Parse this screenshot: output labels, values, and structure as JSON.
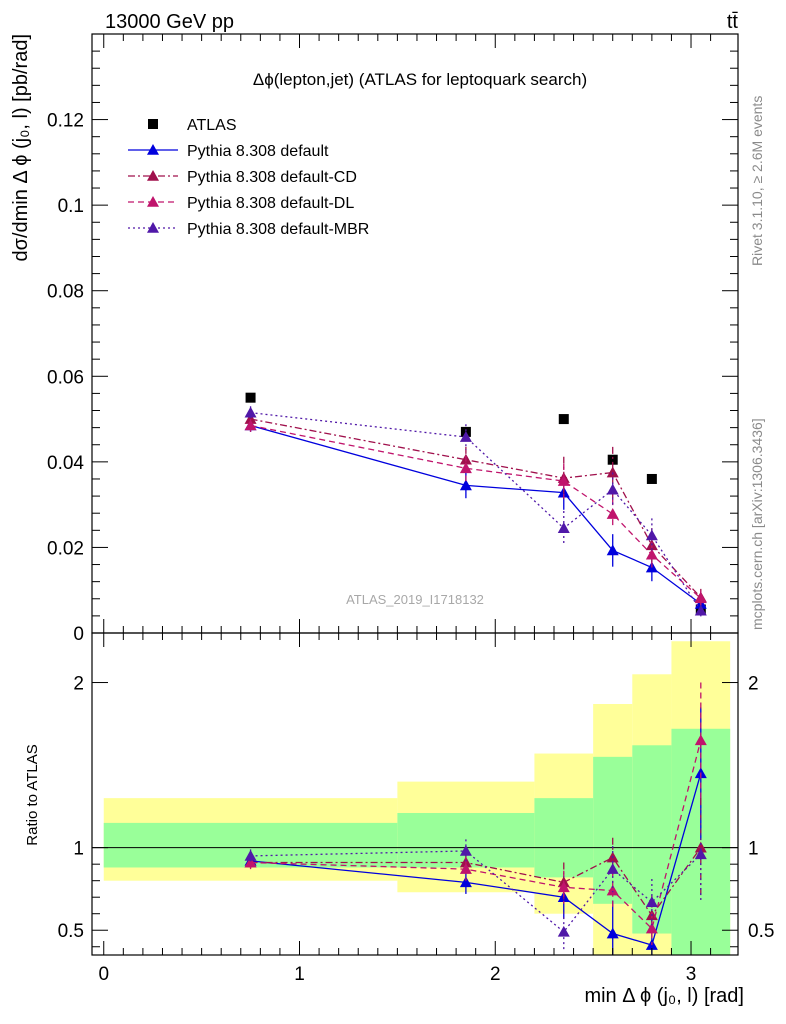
{
  "header": {
    "energy_label": "13000 GeV pp",
    "process_label": "tt̄"
  },
  "side_labels": {
    "rivet": "Rivet 3.1.10, ≥ 2.6M events",
    "mcplots": "mcplots.cern.ch [arXiv:1306.3436]"
  },
  "chart_data": [
    {
      "type": "scatter",
      "panel": "main",
      "title": "Δϕ(lepton,jet) (ATLAS for leptoquark search)",
      "watermark": "ATLAS_2019_I1718132",
      "ylabel": "dσ/dmin Δ ϕ (j₀, l) [pb/rad]",
      "xlim": [
        -0.06,
        3.24
      ],
      "ylim": [
        0,
        0.14
      ],
      "y_ticks": [
        0,
        0.02,
        0.04,
        0.06,
        0.08,
        0.1,
        0.12
      ],
      "y_tick_labels": [
        "0",
        "0.02",
        "0.04",
        "0.06",
        "0.08",
        "0.1",
        "0.12"
      ],
      "legend_position": "top-left",
      "series": [
        {
          "name": "ATLAS",
          "marker": "square",
          "color": "#000000",
          "x": [
            0.75,
            1.85,
            2.35,
            2.6,
            2.8,
            3.05
          ],
          "y": [
            0.055,
            0.047,
            0.05,
            0.0405,
            0.036,
            0.0055
          ]
        },
        {
          "name": "Pythia 8.308 default",
          "marker": "triangle",
          "line": "solid",
          "color": "#0000dd",
          "x": [
            0.75,
            1.85,
            2.35,
            2.6,
            2.8,
            3.05
          ],
          "y": [
            0.0485,
            0.0345,
            0.0328,
            0.0193,
            0.0153,
            0.0068
          ],
          "err": [
            0.0015,
            0.003,
            0.004,
            0.0038,
            0.0032,
            0.0015
          ]
        },
        {
          "name": "Pythia 8.308 default-CD",
          "marker": "triangle",
          "line": "dashdot",
          "color": "#a0104c",
          "x": [
            0.75,
            1.85,
            2.35,
            2.6,
            2.8,
            3.05
          ],
          "y": [
            0.05,
            0.0405,
            0.0362,
            0.0375,
            0.0205,
            0.0083
          ],
          "err": [
            0.0015,
            0.003,
            0.005,
            0.006,
            0.004,
            0.002
          ]
        },
        {
          "name": "Pythia 8.308 default-DL",
          "marker": "triangle",
          "line": "dashed",
          "color": "#c0146c",
          "x": [
            0.75,
            1.85,
            2.35,
            2.6,
            2.8,
            3.05
          ],
          "y": [
            0.0485,
            0.0385,
            0.0355,
            0.0278,
            0.0183,
            0.0081
          ],
          "err": [
            0.0015,
            0.003,
            0.004,
            0.0035,
            0.003,
            0.0018
          ]
        },
        {
          "name": "Pythia 8.308 default-MBR",
          "marker": "triangle",
          "line": "dotted",
          "color": "#5018a8",
          "x": [
            0.75,
            1.85,
            2.35,
            2.6,
            2.8,
            3.05
          ],
          "y": [
            0.0515,
            0.0458,
            0.0245,
            0.0335,
            0.0228,
            0.0052
          ],
          "err": [
            0.0015,
            0.003,
            0.004,
            0.004,
            0.004,
            0.0013
          ]
        }
      ]
    },
    {
      "type": "scatter",
      "panel": "ratio",
      "ylabel": "Ratio to ATLAS",
      "xlabel": "min Δ ϕ (j₀, l) [rad]",
      "xlim": [
        -0.06,
        3.24
      ],
      "ylim": [
        0.35,
        2.3
      ],
      "x_ticks": [
        0,
        1,
        2,
        3
      ],
      "x_tick_labels": [
        "0",
        "1",
        "2",
        "3"
      ],
      "y_ticks": [
        0.5,
        1,
        2
      ],
      "y_tick_labels": [
        "0.5",
        "1",
        "2"
      ],
      "bands": {
        "bin_edges": [
          0,
          1.5,
          2.2,
          2.5,
          2.7,
          2.9,
          3.2
        ],
        "inner": [
          [
            0.88,
            1.15
          ],
          [
            0.88,
            1.21
          ],
          [
            0.82,
            1.3
          ],
          [
            0.66,
            1.55
          ],
          [
            0.48,
            1.62
          ],
          [
            0.25,
            1.72
          ]
        ],
        "outer": [
          [
            0.8,
            1.3
          ],
          [
            0.73,
            1.4
          ],
          [
            0.6,
            1.57
          ],
          [
            0.35,
            1.87
          ],
          [
            0.35,
            2.05
          ],
          [
            0.35,
            2.25
          ]
        ],
        "inner_color": "#99ff99",
        "outer_color": "#ffff99"
      },
      "series": [
        {
          "name": "Pythia 8.308 default",
          "marker": "triangle",
          "line": "solid",
          "color": "#0000dd",
          "x": [
            0.75,
            1.85,
            2.35,
            2.6,
            2.8,
            3.05
          ],
          "y": [
            0.92,
            0.79,
            0.7,
            0.48,
            0.41,
            1.45
          ],
          "err": [
            0.04,
            0.07,
            0.13,
            0.2,
            0.2,
            0.4
          ]
        },
        {
          "name": "Pythia 8.308 default-CD",
          "marker": "triangle",
          "line": "dashdot",
          "color": "#a0104c",
          "x": [
            0.75,
            1.85,
            2.35,
            2.6,
            2.8,
            3.05
          ],
          "y": [
            0.91,
            0.91,
            0.79,
            0.94,
            0.59,
            1.0
          ],
          "err": [
            0.04,
            0.07,
            0.12,
            0.12,
            0.12,
            0.3
          ]
        },
        {
          "name": "Pythia 8.308 default-DL",
          "marker": "triangle",
          "line": "dashed",
          "color": "#c0146c",
          "x": [
            0.75,
            1.85,
            2.35,
            2.6,
            2.8,
            3.05
          ],
          "y": [
            0.91,
            0.87,
            0.76,
            0.74,
            0.51,
            1.65
          ],
          "err": [
            0.04,
            0.07,
            0.1,
            0.12,
            0.1,
            0.35
          ]
        },
        {
          "name": "Pythia 8.308 default-MBR",
          "marker": "triangle",
          "line": "dotted",
          "color": "#5018a8",
          "x": [
            0.75,
            1.85,
            2.35,
            2.6,
            2.8,
            3.05
          ],
          "y": [
            0.95,
            0.98,
            0.49,
            0.87,
            0.67,
            0.96
          ],
          "err": [
            0.04,
            0.07,
            0.12,
            0.14,
            0.14,
            0.28
          ]
        }
      ]
    }
  ]
}
